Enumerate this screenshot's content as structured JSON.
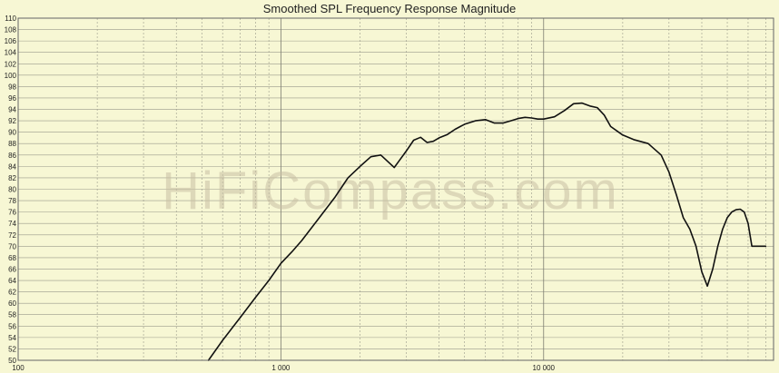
{
  "chart_data": {
    "type": "line",
    "title": "Smoothed SPL Frequency Response Magnitude",
    "watermark": "HiFiCompass.com",
    "x_scale": "log",
    "xlim": [
      100,
      75000
    ],
    "ylim": [
      50,
      110
    ],
    "x_major_ticks": [
      100,
      1000,
      10000
    ],
    "x_major_labels": [
      "100",
      "1 000",
      "10 000"
    ],
    "x_minor_ticks": [
      200,
      300,
      400,
      500,
      600,
      700,
      800,
      900,
      2000,
      3000,
      4000,
      5000,
      6000,
      7000,
      8000,
      9000,
      20000,
      30000,
      40000,
      50000,
      60000,
      70000
    ],
    "y_ticks": [
      50,
      52,
      54,
      56,
      58,
      60,
      62,
      64,
      66,
      68,
      70,
      72,
      74,
      76,
      78,
      80,
      82,
      84,
      86,
      88,
      90,
      92,
      94,
      96,
      98,
      100,
      102,
      104,
      106,
      108,
      110
    ],
    "grid": true,
    "colors": {
      "background": "#f7f7d4",
      "grid": "#9a9a8a",
      "line": "#111111"
    },
    "series": [
      {
        "x": [
          530,
          600,
          700,
          800,
          900,
          1000,
          1100,
          1200,
          1400,
          1600,
          1800,
          2000,
          2200,
          2400,
          2600,
          2700,
          2800,
          3000,
          3200,
          3400,
          3600,
          3800,
          4000,
          4300,
          4600,
          5000,
          5500,
          6000,
          6500,
          7000,
          7500,
          8000,
          8500,
          9000,
          9500,
          10000,
          11000,
          12000,
          13000,
          14000,
          15000,
          16000,
          17000,
          18000,
          20000,
          22000,
          25000,
          28000,
          30000,
          32000,
          34000,
          36000,
          38000,
          40000,
          42000,
          44000,
          46000,
          48000,
          50000,
          52000,
          54000,
          56000,
          58000,
          60000,
          62000,
          64000,
          66000,
          68000,
          70000
        ],
        "values": [
          50,
          53.5,
          57.5,
          61,
          64,
          67,
          69,
          71,
          75,
          78.5,
          82,
          84,
          85.7,
          86,
          84.5,
          83.8,
          84.8,
          86.7,
          88.6,
          89.1,
          88.2,
          88.4,
          89,
          89.6,
          90.5,
          91.4,
          92,
          92.2,
          91.6,
          91.6,
          92,
          92.4,
          92.6,
          92.5,
          92.3,
          92.3,
          92.7,
          93.8,
          95,
          95.1,
          94.6,
          94.3,
          93,
          91,
          89.5,
          88.7,
          88,
          86,
          83,
          79,
          75,
          73,
          70,
          65.5,
          63,
          66,
          70,
          73,
          75,
          76,
          76.4,
          76.5,
          76,
          74,
          70,
          70,
          70,
          70,
          70
        ]
      }
    ]
  }
}
